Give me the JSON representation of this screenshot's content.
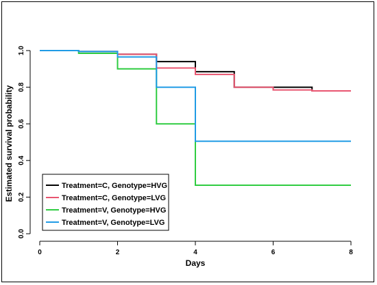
{
  "chart_data": {
    "type": "line",
    "step": true,
    "title": "",
    "xlabel": "Days",
    "ylabel": "Estimated survival probability",
    "xlim": [
      0,
      8
    ],
    "ylim": [
      0,
      1.0
    ],
    "xticks": [
      0,
      2,
      4,
      6,
      8
    ],
    "yticks": [
      0.0,
      0.2,
      0.4,
      0.6,
      0.8,
      1.0
    ],
    "xtick_labels": [
      "0",
      "2",
      "4",
      "6",
      "8"
    ],
    "ytick_labels": [
      "0.0",
      "0.2",
      "0.4",
      "0.6",
      "0.8",
      "1.0"
    ],
    "grid": false,
    "legend_position": "bottom-left",
    "series": [
      {
        "name": "Treatment=C, Genotype=HVG",
        "color": "#000000",
        "x": [
          0,
          1,
          2,
          3,
          4,
          5,
          6,
          7,
          8
        ],
        "y": [
          1.0,
          0.995,
          0.98,
          0.94,
          0.885,
          0.8,
          0.8,
          0.78,
          0.78
        ]
      },
      {
        "name": "Treatment=C, Genotype=LVG",
        "color": "#e8546f",
        "x": [
          0,
          1,
          2,
          3,
          4,
          5,
          6,
          7,
          8
        ],
        "y": [
          1.0,
          0.995,
          0.98,
          0.905,
          0.87,
          0.8,
          0.785,
          0.78,
          0.78
        ]
      },
      {
        "name": "Treatment=V, Genotype=HVG",
        "color": "#2ecc40",
        "x": [
          0,
          1,
          2,
          3,
          4,
          8
        ],
        "y": [
          1.0,
          0.985,
          0.9,
          0.6,
          0.265,
          0.265
        ]
      },
      {
        "name": "Treatment=V, Genotype=LVG",
        "color": "#1f9be5",
        "x": [
          0,
          1,
          2,
          3,
          4,
          8
        ],
        "y": [
          1.0,
          0.995,
          0.965,
          0.8,
          0.505,
          0.505
        ]
      }
    ]
  }
}
